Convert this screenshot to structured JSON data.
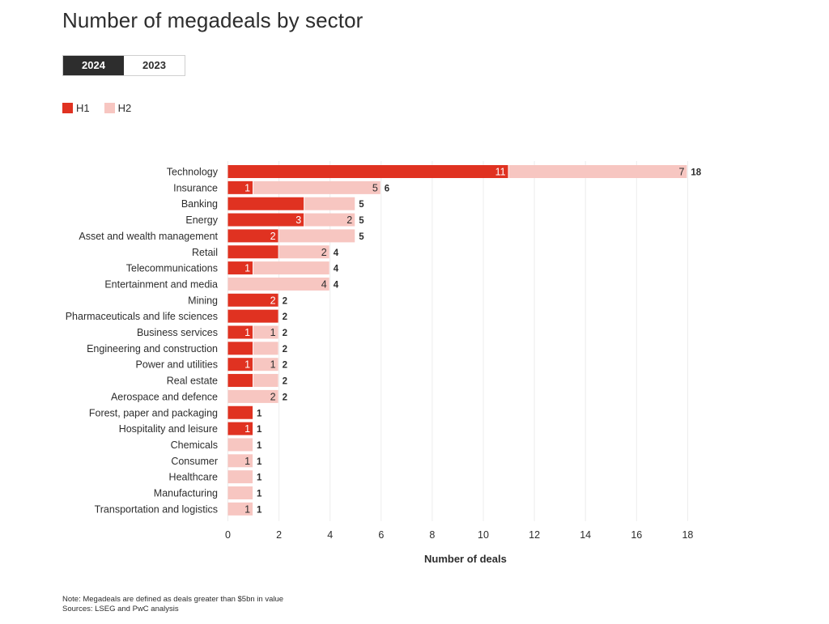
{
  "title": "Number of megadeals by sector",
  "tabs": [
    {
      "label": "2024",
      "active": true
    },
    {
      "label": "2023",
      "active": false
    }
  ],
  "legend": [
    {
      "label": "H1",
      "color": "#e03221"
    },
    {
      "label": "H2",
      "color": "#f7c6c1"
    }
  ],
  "notes": {
    "note": "Note: Megadeals are defined as deals greater than $5bn in value",
    "sources": "Sources: LSEG and PwC analysis"
  },
  "chart_data": {
    "type": "bar",
    "orientation": "horizontal",
    "stacked": true,
    "title": "Number of megadeals by sector",
    "xlabel": "Number of deals",
    "ylabel": "",
    "xlim": [
      0,
      18
    ],
    "xticks": [
      "0",
      "2",
      "4",
      "6",
      "8",
      "10",
      "12",
      "14",
      "16",
      "18"
    ],
    "grid": true,
    "categories": [
      "Technology",
      "Insurance",
      "Banking",
      "Energy",
      "Asset and wealth management",
      "Retail",
      "Telecommunications",
      "Entertainment and media",
      "Mining",
      "Pharmaceuticals and life sciences",
      "Business services",
      "Engineering and construction",
      "Power and utilities",
      "Real estate",
      "Aerospace and defence",
      "Forest, paper and packaging",
      "Hospitality and leisure",
      "Chemicals",
      "Consumer",
      "Healthcare",
      "Manufacturing",
      "Transportation and logistics"
    ],
    "series": [
      {
        "name": "H1",
        "color": "#e03221",
        "values": [
          11,
          1,
          3,
          3,
          2,
          2,
          1,
          0,
          2,
          2,
          1,
          1,
          1,
          1,
          0,
          1,
          1,
          0,
          0,
          0,
          0,
          0
        ]
      },
      {
        "name": "H2",
        "color": "#f7c6c1",
        "values": [
          7,
          5,
          2,
          2,
          3,
          2,
          3,
          4,
          0,
          0,
          1,
          1,
          1,
          1,
          2,
          0,
          0,
          1,
          1,
          1,
          1,
          1
        ]
      }
    ],
    "h1_labels": [
      "11",
      "1",
      "",
      "3",
      "2",
      "",
      "1",
      "",
      "2",
      "",
      "1",
      "",
      "1",
      "",
      "",
      "",
      "1",
      "",
      "",
      "",
      "",
      ""
    ],
    "h2_labels": [
      "7",
      "5",
      "",
      "2",
      "",
      "2",
      "",
      "4",
      "",
      "",
      "1",
      "",
      "1",
      "",
      "2",
      "",
      "",
      "",
      "1",
      "",
      "",
      "1"
    ],
    "totals": [
      "18",
      "6",
      "5",
      "5",
      "5",
      "4",
      "4",
      "4",
      "2",
      "2",
      "2",
      "2",
      "2",
      "2",
      "2",
      "1",
      "1",
      "1",
      "1",
      "1",
      "1",
      "1"
    ]
  }
}
